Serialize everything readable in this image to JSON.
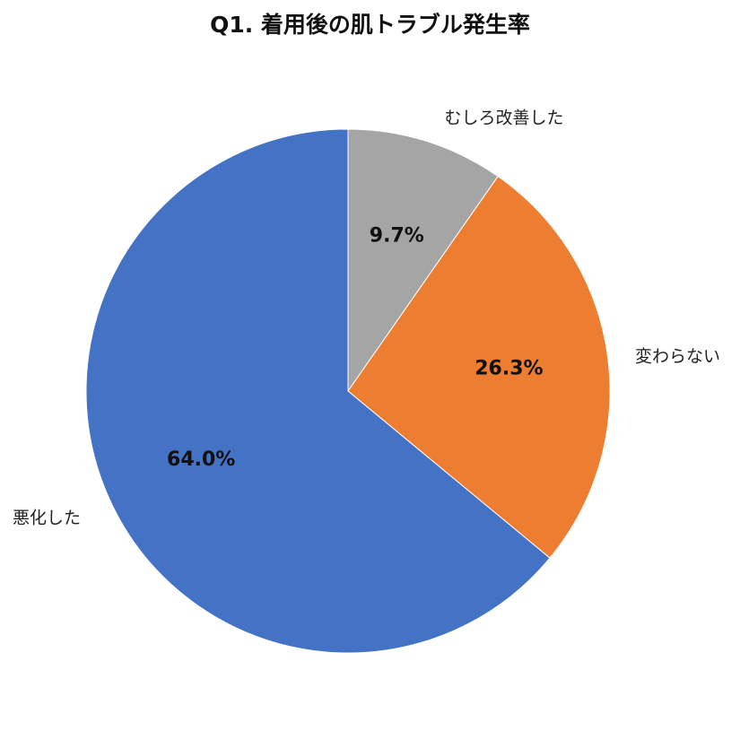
{
  "chart_data": {
    "type": "pie",
    "title": "Q1. 着用後の肌トラブル発生率",
    "start_angle_deg": 0,
    "direction": "clockwise",
    "slices": [
      {
        "label": "むしろ改善した",
        "value": 9.7,
        "value_label": "9.7%",
        "color": "#a5a5a5"
      },
      {
        "label": "変わらない",
        "value": 26.3,
        "value_label": "26.3%",
        "color": "#ed7d31"
      },
      {
        "label": "悪化した",
        "value": 64.0,
        "value_label": "64.0%",
        "color": "#4472c4"
      }
    ],
    "legend": "none",
    "grid": false
  }
}
